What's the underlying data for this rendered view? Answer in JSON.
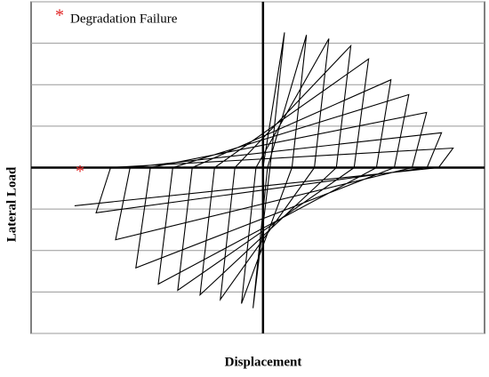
{
  "chart_data": {
    "type": "line",
    "x_label": "Displacement",
    "y_label": "Lateral Load",
    "legend_symbol": "*",
    "legend_text": "Degradation Failure",
    "color": "#000000",
    "failure_marker": {
      "x": -4.42,
      "y": -0.06,
      "color": "#e02020"
    },
    "xlim": [
      -5.6,
      5.35
    ],
    "ylim": [
      -4,
      4
    ],
    "ygrid": [
      -4,
      -3,
      -2,
      -1,
      0,
      1,
      2,
      3,
      4
    ],
    "x": [
      0,
      0.52,
      0.17,
      -0.24,
      0.11,
      1.05,
      0.7,
      -0.52,
      -0.17,
      1.59,
      1.24,
      -1.03,
      -0.68,
      2.12,
      1.77,
      -1.52,
      -1.17,
      2.55,
      2.2,
      -2.06,
      -1.71,
      3.09,
      2.74,
      -2.53,
      -2.18,
      3.52,
      3.17,
      -3.07,
      -2.72,
      3.95,
      3.6,
      -3.56,
      -3.21,
      4.31,
      3.96,
      -4.03,
      -3.68,
      4.59,
      4.24,
      -4.55
    ],
    "values": [
      0,
      3.26,
      0,
      -3.39,
      0,
      3.2,
      0,
      -3.28,
      0,
      3.11,
      0,
      -3.18,
      0,
      2.94,
      0,
      -3.07,
      0,
      2.62,
      0,
      -2.96,
      0,
      2.12,
      0,
      -2.81,
      0,
      1.76,
      0,
      -2.42,
      0,
      1.33,
      0,
      -1.74,
      0,
      0.84,
      0,
      -1.09,
      0,
      0.47,
      0,
      -0.92
    ]
  }
}
